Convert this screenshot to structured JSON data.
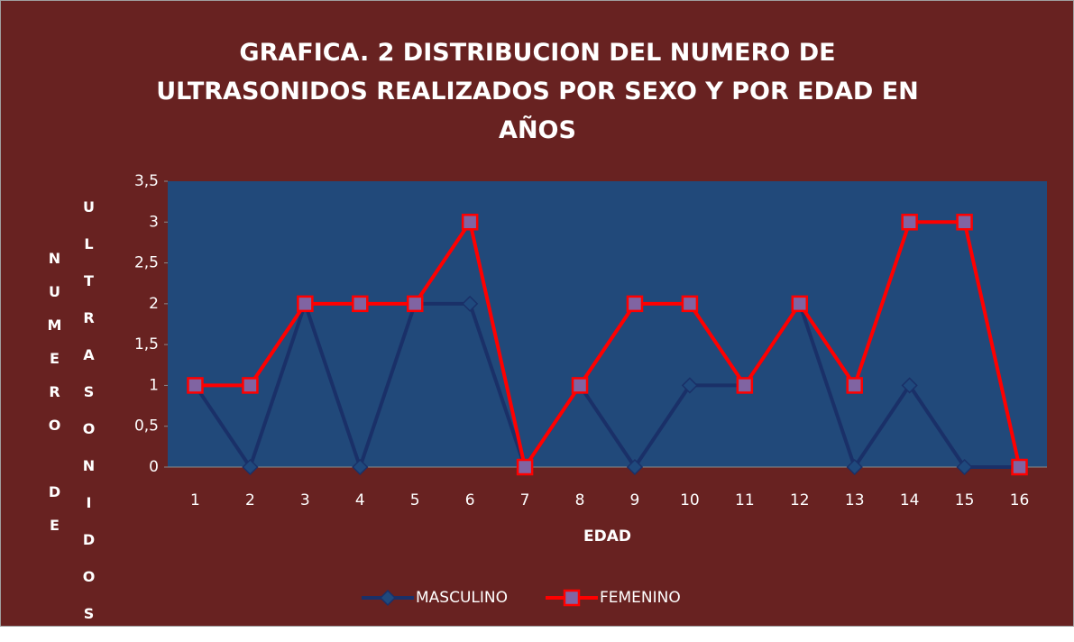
{
  "chart_data": {
    "type": "line",
    "title": "GRAFICA. 2  DISTRIBUCION DEL NUMERO DE ULTRASONIDOS REALIZADOS POR SEXO Y POR EDAD EN AÑOS",
    "xlabel": "EDAD",
    "ylabel": [
      "NUMERO DE",
      "ULTRASONIDOS"
    ],
    "categories": [
      "1",
      "2",
      "3",
      "4",
      "5",
      "6",
      "7",
      "8",
      "9",
      "10",
      "11",
      "12",
      "13",
      "14",
      "15",
      "16"
    ],
    "series": [
      {
        "name": "MASCULINO",
        "color": "#1a3068",
        "marker": "diamond",
        "marker_color": "#1f497d",
        "values": [
          1,
          0,
          2,
          0,
          2,
          2,
          0,
          1,
          0,
          1,
          1,
          2,
          0,
          1,
          0,
          0
        ]
      },
      {
        "name": "FEMENINO",
        "color": "#ff0000",
        "marker": "square",
        "marker_color": "#8064a2",
        "values": [
          1,
          1,
          2,
          2,
          2,
          3,
          0,
          1,
          2,
          2,
          1,
          2,
          1,
          3,
          3,
          0
        ]
      }
    ],
    "ylim": [
      0,
      3.5
    ],
    "yticks": [
      0,
      {
        "value": 0.5,
        "label": "0,5"
      },
      1,
      {
        "value": 1.5,
        "label": "1,5"
      },
      2,
      {
        "value": 2.5,
        "label": "2,5"
      },
      3,
      {
        "value": 3.5,
        "label": "3,5"
      }
    ],
    "grid": false,
    "legend": "bottom"
  }
}
